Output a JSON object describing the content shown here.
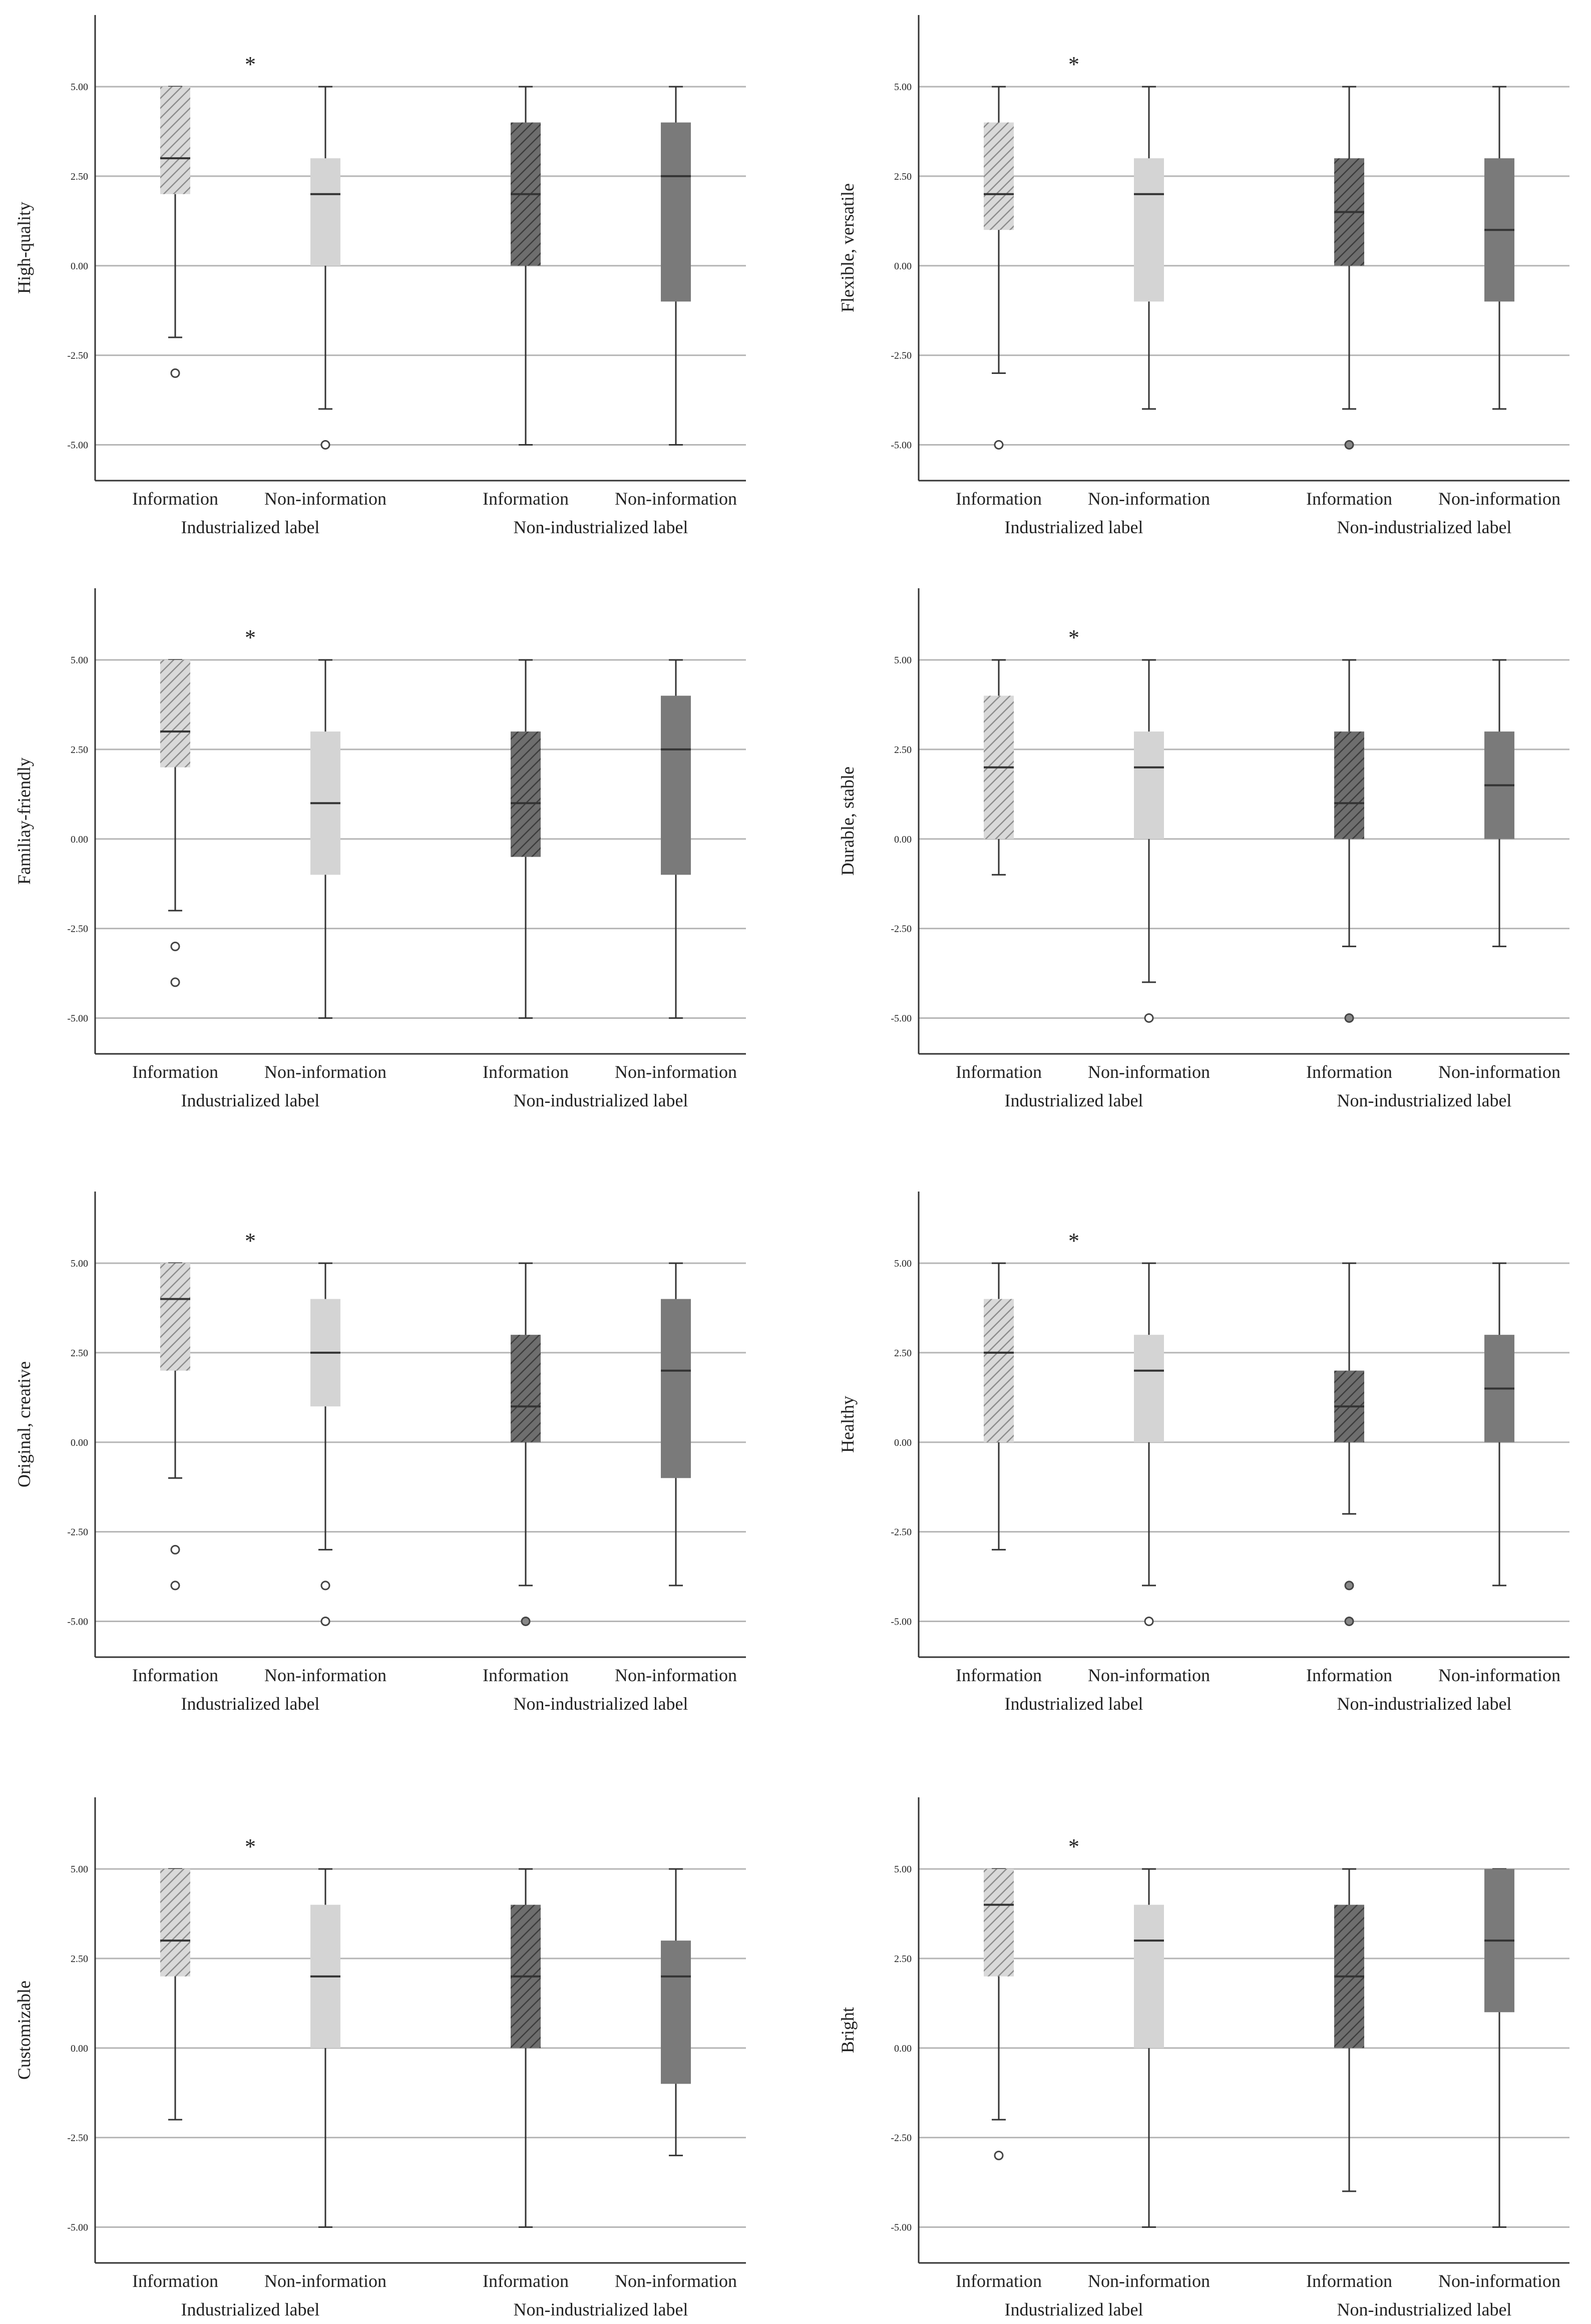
{
  "colors": {
    "industrialized_information": "#d9d9d9",
    "industrialized_hatch": "#8c8c8c",
    "industrialized_non_information": "#d4d4d4",
    "non_industrialized_information": "#6e6e6e",
    "non_industrialized_hatch": "#3c3c3c",
    "non_industrialized_non_information": "#7a7a7a",
    "gridline": "#b5b5b5",
    "axis": "#333333"
  },
  "chart_data": [
    {
      "type": "box",
      "ylabel": "High-quality",
      "ylim": [
        -6,
        7
      ],
      "ticks": [
        "5.00",
        "2.50",
        "0.00",
        "-2.50",
        "-5.00"
      ],
      "tick_values": [
        5,
        2.5,
        0,
        -2.5,
        -5
      ],
      "categories": [
        "Information",
        "Non-information",
        "Information",
        "Non-information"
      ],
      "groups": [
        "Industrialized label",
        "Non-industrialized label"
      ],
      "annotation": "*",
      "boxes": [
        {
          "min": -2,
          "q1": 2,
          "median": 3,
          "q3": 5,
          "max": 5,
          "outliers": [
            -3
          ]
        },
        {
          "min": -4,
          "q1": 0,
          "median": 2,
          "q3": 3,
          "max": 5,
          "outliers": [
            -5
          ]
        },
        {
          "min": -5,
          "q1": 0,
          "median": 2,
          "q3": 4,
          "max": 5,
          "outliers": []
        },
        {
          "min": -5,
          "q1": -1,
          "median": 2.5,
          "q3": 4,
          "max": 5,
          "outliers": []
        }
      ]
    },
    {
      "type": "box",
      "ylabel": "Flexible, versatile",
      "ylim": [
        -6,
        7
      ],
      "ticks": [
        "5.00",
        "2.50",
        "0.00",
        "-2.50",
        "-5.00"
      ],
      "tick_values": [
        5,
        2.5,
        0,
        -2.5,
        -5
      ],
      "categories": [
        "Information",
        "Non-information",
        "Information",
        "Non-information"
      ],
      "groups": [
        "Industrialized label",
        "Non-industrialized label"
      ],
      "annotation": "*",
      "boxes": [
        {
          "min": -3,
          "q1": 1,
          "median": 2,
          "q3": 4,
          "max": 5,
          "outliers": [
            -5
          ]
        },
        {
          "min": -4,
          "q1": -1,
          "median": 2,
          "q3": 3,
          "max": 5,
          "outliers": []
        },
        {
          "min": -4,
          "q1": 0,
          "median": 1.5,
          "q3": 3,
          "max": 5,
          "outliers": [
            -5
          ]
        },
        {
          "min": -4,
          "q1": -1,
          "median": 1,
          "q3": 3,
          "max": 5,
          "outliers": []
        }
      ]
    },
    {
      "type": "box",
      "ylabel": "Familiay-friendly",
      "ylim": [
        -6,
        7
      ],
      "ticks": [
        "5.00",
        "2.50",
        "0.00",
        "-2.50",
        "-5.00"
      ],
      "tick_values": [
        5,
        2.5,
        0,
        -2.5,
        -5
      ],
      "categories": [
        "Information",
        "Non-information",
        "Information",
        "Non-information"
      ],
      "groups": [
        "Industrialized label",
        "Non-industrialized label"
      ],
      "annotation": "*",
      "boxes": [
        {
          "min": -2,
          "q1": 2,
          "median": 3,
          "q3": 5,
          "max": 5,
          "outliers": [
            -3,
            -4
          ]
        },
        {
          "min": -5,
          "q1": -1,
          "median": 1,
          "q3": 3,
          "max": 5,
          "outliers": []
        },
        {
          "min": -5,
          "q1": -0.5,
          "median": 1,
          "q3": 3,
          "max": 5,
          "outliers": []
        },
        {
          "min": -5,
          "q1": -1,
          "median": 2.5,
          "q3": 4,
          "max": 5,
          "outliers": []
        }
      ]
    },
    {
      "type": "box",
      "ylabel": "Durable, stable",
      "ylim": [
        -6,
        7
      ],
      "ticks": [
        "5.00",
        "2.50",
        "0.00",
        "-2.50",
        "-5.00"
      ],
      "tick_values": [
        5,
        2.5,
        0,
        -2.5,
        -5
      ],
      "categories": [
        "Information",
        "Non-information",
        "Information",
        "Non-information"
      ],
      "groups": [
        "Industrialized label",
        "Non-industrialized label"
      ],
      "annotation": "*",
      "boxes": [
        {
          "min": -1,
          "q1": 0,
          "median": 2,
          "q3": 4,
          "max": 5,
          "outliers": []
        },
        {
          "min": -4,
          "q1": 0,
          "median": 2,
          "q3": 3,
          "max": 5,
          "outliers": [
            -5
          ]
        },
        {
          "min": -3,
          "q1": 0,
          "median": 1,
          "q3": 3,
          "max": 5,
          "outliers": [
            -5
          ]
        },
        {
          "min": -3,
          "q1": 0,
          "median": 1.5,
          "q3": 3,
          "max": 5,
          "outliers": []
        }
      ]
    },
    {
      "type": "box",
      "ylabel": "Original, creative",
      "ylim": [
        -6,
        7
      ],
      "ticks": [
        "5.00",
        "2.50",
        "0.00",
        "-2.50",
        "-5.00"
      ],
      "tick_values": [
        5,
        2.5,
        0,
        -2.5,
        -5
      ],
      "categories": [
        "Information",
        "Non-information",
        "Information",
        "Non-information"
      ],
      "groups": [
        "Industrialized label",
        "Non-industrialized label"
      ],
      "annotation": "*",
      "boxes": [
        {
          "min": -1,
          "q1": 2,
          "median": 4,
          "q3": 5,
          "max": 5,
          "outliers": [
            -3,
            -4
          ]
        },
        {
          "min": -3,
          "q1": 1,
          "median": 2.5,
          "q3": 4,
          "max": 5,
          "outliers": [
            -4,
            -5
          ]
        },
        {
          "min": -4,
          "q1": 0,
          "median": 1,
          "q3": 3,
          "max": 5,
          "outliers": [
            -5
          ]
        },
        {
          "min": -4,
          "q1": -1,
          "median": 2,
          "q3": 4,
          "max": 5,
          "outliers": []
        }
      ]
    },
    {
      "type": "box",
      "ylabel": "Healthy",
      "ylim": [
        -6,
        7
      ],
      "ticks": [
        "5.00",
        "2.50",
        "0.00",
        "-2.50",
        "-5.00"
      ],
      "tick_values": [
        5,
        2.5,
        0,
        -2.5,
        -5
      ],
      "categories": [
        "Information",
        "Non-information",
        "Information",
        "Non-information"
      ],
      "groups": [
        "Industrialized label",
        "Non-industrialized label"
      ],
      "annotation": "*",
      "boxes": [
        {
          "min": -3,
          "q1": 0,
          "median": 2.5,
          "q3": 4,
          "max": 5,
          "outliers": []
        },
        {
          "min": -4,
          "q1": 0,
          "median": 2,
          "q3": 3,
          "max": 5,
          "outliers": [
            -5
          ]
        },
        {
          "min": -2,
          "q1": 0,
          "median": 1,
          "q3": 2,
          "max": 5,
          "outliers": [
            -4,
            -5
          ]
        },
        {
          "min": -4,
          "q1": 0,
          "median": 1.5,
          "q3": 3,
          "max": 5,
          "outliers": []
        }
      ]
    },
    {
      "type": "box",
      "ylabel": "Customizable",
      "ylim": [
        -6,
        7
      ],
      "ticks": [
        "5.00",
        "2.50",
        "0.00",
        "-2.50",
        "-5.00"
      ],
      "tick_values": [
        5,
        2.5,
        0,
        -2.5,
        -5
      ],
      "categories": [
        "Information",
        "Non-information",
        "Information",
        "Non-information"
      ],
      "groups": [
        "Industrialized label",
        "Non-industrialized label"
      ],
      "annotation": "*",
      "boxes": [
        {
          "min": -2,
          "q1": 2,
          "median": 3,
          "q3": 5,
          "max": 5,
          "outliers": []
        },
        {
          "min": -5,
          "q1": 0,
          "median": 2,
          "q3": 4,
          "max": 5,
          "outliers": []
        },
        {
          "min": -5,
          "q1": 0,
          "median": 2,
          "q3": 4,
          "max": 5,
          "outliers": []
        },
        {
          "min": -3,
          "q1": -1,
          "median": 2,
          "q3": 3,
          "max": 5,
          "outliers": []
        }
      ]
    },
    {
      "type": "box",
      "ylabel": "Bright",
      "ylim": [
        -6,
        7
      ],
      "ticks": [
        "5.00",
        "2.50",
        "0.00",
        "-2.50",
        "-5.00"
      ],
      "tick_values": [
        5,
        2.5,
        0,
        -2.5,
        -5
      ],
      "categories": [
        "Information",
        "Non-information",
        "Information",
        "Non-information"
      ],
      "groups": [
        "Industrialized label",
        "Non-industrialized label"
      ],
      "annotation": "*",
      "boxes": [
        {
          "min": -2,
          "q1": 2,
          "median": 4,
          "q3": 5,
          "max": 5,
          "outliers": [
            -3
          ]
        },
        {
          "min": -5,
          "q1": 0,
          "median": 3,
          "q3": 4,
          "max": 5,
          "outliers": []
        },
        {
          "min": -4,
          "q1": 0,
          "median": 2,
          "q3": 4,
          "max": 5,
          "outliers": []
        },
        {
          "min": -5,
          "q1": 1,
          "median": 3,
          "q3": 5,
          "max": 5,
          "outliers": []
        }
      ]
    }
  ]
}
